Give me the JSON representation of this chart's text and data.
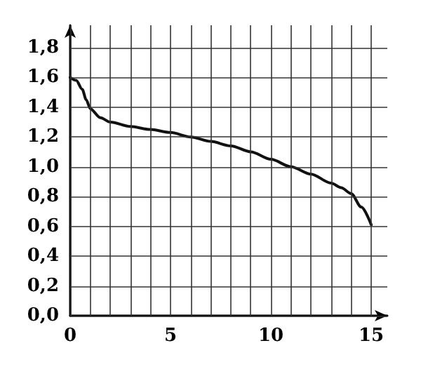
{
  "chart_data": {
    "type": "line",
    "xlim": [
      0,
      15.8
    ],
    "ylim": [
      0,
      1.95
    ],
    "xticks": [
      0,
      {
        "value": 1,
        "label": null
      },
      {
        "value": 2,
        "label": null
      },
      {
        "value": 3,
        "label": null
      },
      {
        "value": 4,
        "label": null
      },
      5,
      {
        "value": 6,
        "label": null
      },
      {
        "value": 7,
        "label": null
      },
      {
        "value": 8,
        "label": null
      },
      {
        "value": 9,
        "label": null
      },
      10,
      {
        "value": 11,
        "label": null
      },
      {
        "value": 12,
        "label": null
      },
      {
        "value": 13,
        "label": null
      },
      {
        "value": 14,
        "label": null
      },
      15
    ],
    "yticks": [
      {
        "value": 0,
        "label": "0,0"
      },
      {
        "value": 0.2,
        "label": "0,2"
      },
      {
        "value": 0.4,
        "label": "0,4"
      },
      {
        "value": 0.6,
        "label": "0,6"
      },
      {
        "value": 0.8,
        "label": "0,8"
      },
      {
        "value": 1,
        "label": "1,0"
      },
      {
        "value": 1.2,
        "label": "1,2"
      },
      {
        "value": 1.4,
        "label": "1,4"
      },
      {
        "value": 1.6,
        "label": "1,6"
      },
      {
        "value": 1.8,
        "label": "1,8"
      }
    ],
    "grid": true,
    "marker": "none",
    "line_style": "solid",
    "series": [
      {
        "color": "#111111",
        "x": [
          0,
          0.3,
          0.6,
          0.8,
          1,
          1.5,
          2,
          3,
          4,
          5,
          6,
          7,
          8,
          9,
          10,
          11,
          12,
          13,
          13.5,
          14,
          14.5,
          15
        ],
        "values": [
          1.6,
          1.58,
          1.52,
          1.45,
          1.39,
          1.33,
          1.3,
          1.27,
          1.25,
          1.23,
          1.2,
          1.17,
          1.14,
          1.1,
          1.05,
          1.0,
          0.95,
          0.89,
          0.86,
          0.82,
          0.73,
          0.61
        ]
      }
    ]
  }
}
